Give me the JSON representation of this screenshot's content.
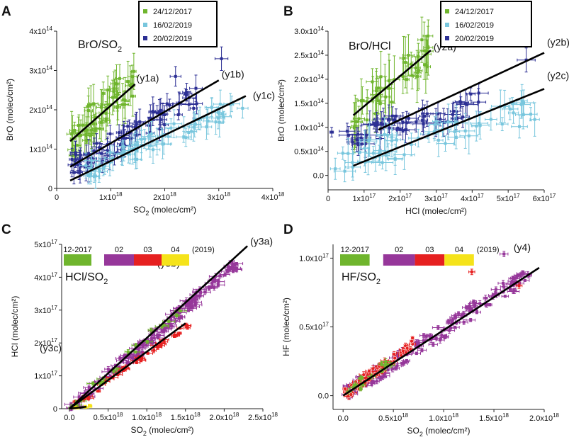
{
  "chart_data": [
    {
      "id": "A",
      "type": "scatter",
      "panel_label": "A",
      "title": "BrO/SO2",
      "title_main": "BrO/SO",
      "title_sub": "2",
      "xlabel_main": "SO",
      "xlabel_sub": "2",
      "xlabel_tail": " (molec/cm²)",
      "ylabel": "BrO  (molec/cm²)",
      "xlim": [
        0,
        4e+18
      ],
      "ylim": [
        0,
        400000000000000.0
      ],
      "x_ticks": [
        {
          "v": 0,
          "m": "0",
          "e": ""
        },
        {
          "v": 1e+18,
          "m": "1x10",
          "e": "18"
        },
        {
          "v": 2e+18,
          "m": "2x10",
          "e": "18"
        },
        {
          "v": 3e+18,
          "m": "3x10",
          "e": "18"
        },
        {
          "v": 4e+18,
          "m": "4x10",
          "e": "18"
        }
      ],
      "y_ticks": [
        {
          "v": 0,
          "m": "0",
          "e": ""
        },
        {
          "v": 100000000000000.0,
          "m": "1x10",
          "e": "14"
        },
        {
          "v": 200000000000000.0,
          "m": "2x10",
          "e": "14"
        },
        {
          "v": 300000000000000.0,
          "m": "3x10",
          "e": "14"
        },
        {
          "v": 400000000000000.0,
          "m": "4x10",
          "e": "14"
        }
      ],
      "legend": [
        "24/12/2017",
        "16/02/2019",
        "20/02/2019"
      ],
      "series": [
        {
          "name": "24/12/2017",
          "color": "#6fb52d",
          "seed": 11,
          "n": 60,
          "x_range": [
            2.5e+17,
            1.45e+18
          ],
          "slope": 0.000135,
          "intercept": 85000000000000.0,
          "scatter": 45000000000000.0,
          "xerr": 6e+16,
          "yerr": 40000000000000.0,
          "marker": "square"
        },
        {
          "name": "20/02/2019",
          "color": "#2c2f94",
          "seed": 23,
          "n": 75,
          "x_range": [
            2.5e+17,
            2.6e+18
          ],
          "slope": 7.5e-05,
          "intercept": 35000000000000.0,
          "scatter": 30000000000000.0,
          "xerr": 9e+16,
          "yerr": 25000000000000.0,
          "marker": "square"
        },
        {
          "name": "16/02/2019",
          "color": "#78c6dd",
          "seed": 37,
          "n": 70,
          "x_range": [
            5e+17,
            3.5e+18
          ],
          "slope": 6e-05,
          "intercept": 10000000000000.0,
          "scatter": 25000000000000.0,
          "xerr": 1e+17,
          "yerr": 25000000000000.0,
          "marker": "square"
        }
      ],
      "extra_points": [
        {
          "x": 3.05e+18,
          "y": 330000000000000.0,
          "color": "#2c2f94",
          "xerr": 1.2e+17,
          "yerr": 30000000000000.0
        },
        {
          "x": 2.2e+18,
          "y": 285000000000000.0,
          "color": "#2c2f94",
          "xerr": 1e+17,
          "yerr": 25000000000000.0
        }
      ],
      "fits": [
        {
          "label": "(y1a)",
          "x0": 2.5e+17,
          "y0": 120000000000000.0,
          "x1": 1.45e+18,
          "y1": 265000000000000.0
        },
        {
          "label": "(y1b)",
          "x0": 2.5e+17,
          "y0": 55000000000000.0,
          "x1": 3e+18,
          "y1": 275000000000000.0
        },
        {
          "label": "(y1c)",
          "x0": 2.5e+17,
          "y0": 20000000000000.0,
          "x1": 3.5e+18,
          "y1": 235000000000000.0
        }
      ]
    },
    {
      "id": "B",
      "type": "scatter",
      "panel_label": "B",
      "title": "BrO/HCl",
      "xlabel": "HCl (molec/cm²)",
      "ylabel": "BrO  (molec/cm²)",
      "xlim": [
        0,
        6e+17
      ],
      "ylim": [
        -30000000000000.0,
        300000000000000.0
      ],
      "x_ticks": [
        {
          "v": 0,
          "m": "0",
          "e": ""
        },
        {
          "v": 1e+17,
          "m": "1x10",
          "e": "17"
        },
        {
          "v": 2e+17,
          "m": "2x10",
          "e": "17"
        },
        {
          "v": 3e+17,
          "m": "3x10",
          "e": "17"
        },
        {
          "v": 4e+17,
          "m": "4x10",
          "e": "17"
        },
        {
          "v": 5e+17,
          "m": "5x10",
          "e": "17"
        },
        {
          "v": 6e+17,
          "m": "6x10",
          "e": "17"
        }
      ],
      "y_ticks": [
        {
          "v": 0,
          "m": "0.0",
          "e": ""
        },
        {
          "v": 50000000000000.0,
          "m": "0.5x10",
          "e": "14"
        },
        {
          "v": 100000000000000.0,
          "m": "1.0x10",
          "e": "14"
        },
        {
          "v": 150000000000000.0,
          "m": "1.5x10",
          "e": "14"
        },
        {
          "v": 200000000000000.0,
          "m": "2.0x10",
          "e": "14"
        },
        {
          "v": 250000000000000.0,
          "m": "2.5x10",
          "e": "14"
        },
        {
          "v": 300000000000000.0,
          "m": "3.0x10",
          "e": "14"
        }
      ],
      "legend": [
        "24/12/2017",
        "16/02/2019",
        "20/02/2019"
      ],
      "series": [
        {
          "name": "24/12/2017",
          "color": "#6fb52d",
          "seed": 41,
          "n": 45,
          "x_range": [
            7e+16,
            2.8e+17
          ],
          "slope": 0.00065,
          "intercept": 75000000000000.0,
          "scatter": 40000000000000.0,
          "xerr": 1.2e+16,
          "yerr": 40000000000000.0,
          "marker": "square"
        },
        {
          "name": "20/02/2019",
          "color": "#2c2f94",
          "seed": 53,
          "n": 55,
          "x_range": [
            5e+16,
            4.2e+17
          ],
          "slope": 0.00019,
          "intercept": 70000000000000.0,
          "scatter": 25000000000000.0,
          "xerr": 2e+16,
          "yerr": 20000000000000.0,
          "marker": "square"
        },
        {
          "name": "16/02/2019",
          "color": "#78c6dd",
          "seed": 67,
          "n": 60,
          "x_range": [
            2e+16,
            5.8e+17
          ],
          "slope": 0.0002,
          "intercept": 25000000000000.0,
          "scatter": 30000000000000.0,
          "xerr": 2e+16,
          "yerr": 25000000000000.0,
          "marker": "square"
        }
      ],
      "extra_points": [
        {
          "x": 5.5e+17,
          "y": 240000000000000.0,
          "color": "#2c2f94",
          "xerr": 2.5e+16,
          "yerr": 25000000000000.0
        },
        {
          "x": 1e+16,
          "y": 90000000000000.0,
          "color": "#2c2f94",
          "xerr": 5000000000000000.0,
          "yerr": 10000000000000.0
        }
      ],
      "fits": [
        {
          "label": "(y2a)",
          "x0": 7e+16,
          "y0": 125000000000000.0,
          "x1": 2.85e+17,
          "y1": 260000000000000.0
        },
        {
          "label": "(y2b)",
          "x0": 1.4e+17,
          "y0": 95000000000000.0,
          "x1": 6e+17,
          "y1": 255000000000000.0
        },
        {
          "label": "(y2c)",
          "x0": 7e+16,
          "y0": 20000000000000.0,
          "x1": 6e+17,
          "y1": 180000000000000.0
        }
      ]
    },
    {
      "id": "C",
      "type": "scatter",
      "panel_label": "C",
      "title": "HCl/SO2",
      "title_main": "HCl/SO",
      "title_sub": "2",
      "xlabel_main": "SO",
      "xlabel_sub": "2",
      "xlabel_tail": " (molec/cm²)",
      "ylabel": "HCl  (molec/cm²)",
      "xlim": [
        -1e+17,
        2.5e+18
      ],
      "ylim": [
        0,
        5e+17
      ],
      "x_ticks": [
        {
          "v": 0,
          "m": "0.0",
          "e": ""
        },
        {
          "v": 5e+17,
          "m": "0.5x10",
          "e": "18"
        },
        {
          "v": 1e+18,
          "m": "1.0x10",
          "e": "18"
        },
        {
          "v": 1.5e+18,
          "m": "1.5x10",
          "e": "18"
        },
        {
          "v": 2e+18,
          "m": "2.0x10",
          "e": "18"
        },
        {
          "v": 2.5e+18,
          "m": "2.5x10",
          "e": "18"
        }
      ],
      "y_ticks": [
        {
          "v": 0,
          "m": "0",
          "e": ""
        },
        {
          "v": 1e+17,
          "m": "1x10",
          "e": "17"
        },
        {
          "v": 2e+17,
          "m": "2x10",
          "e": "17"
        },
        {
          "v": 3e+17,
          "m": "3x10",
          "e": "17"
        },
        {
          "v": 4e+17,
          "m": "4x10",
          "e": "17"
        },
        {
          "v": 5e+17,
          "m": "5x10",
          "e": "17"
        }
      ],
      "month_bar": {
        "items": [
          {
            "label": "12-2017",
            "color": "#6fb52d"
          },
          {
            "label": "02",
            "color": "#96379a"
          },
          {
            "label": "03",
            "color": "#e62020"
          },
          {
            "label": "04",
            "color": "#f5e31a"
          }
        ],
        "year": "(2019)"
      },
      "series": [
        {
          "name": "02-2019",
          "color": "#96379a",
          "seed": 71,
          "n": 150,
          "x_range": [
            2e+16,
            2.2e+18
          ],
          "slope": 0.205,
          "intercept": 0,
          "scatter": 2e+16,
          "xerr": 6e+16,
          "yerr": 6000000000000000.0,
          "marker": "square"
        },
        {
          "name": "03-2019",
          "color": "#e62020",
          "seed": 83,
          "n": 45,
          "x_range": [
            5e+16,
            1.6e+18
          ],
          "slope": 0.165,
          "intercept": 0,
          "scatter": 1e+16,
          "xerr": 5e+16,
          "yerr": 5000000000000000.0,
          "marker": "square"
        },
        {
          "name": "12-2017",
          "color": "#6fb52d",
          "seed": 97,
          "n": 20,
          "x_range": [
            3e+16,
            1.5e+18
          ],
          "slope": 0.215,
          "intercept": 0,
          "scatter": 1.5e+16,
          "xerr": 6e+16,
          "yerr": 5000000000000000.0,
          "marker": "square"
        },
        {
          "name": "04-2019",
          "color": "#f5e31a",
          "seed": 101,
          "n": 12,
          "x_range": [
            2e+16,
            3e+17
          ],
          "slope": 0.03,
          "intercept": 0,
          "scatter": 3000000000000000.0,
          "xerr": 2e+16,
          "yerr": 2000000000000000.0,
          "marker": "square"
        }
      ],
      "extra_points": [],
      "fits": [
        {
          "label": "(y3a)",
          "x0": 0,
          "y0": 0,
          "x1": 2.3e+18,
          "y1": 4.95e+17
        },
        {
          "label": "(y3b)",
          "x0": 0,
          "y0": 0,
          "x1": 1.5e+18,
          "y1": 2.6e+17
        },
        {
          "label": "(y3c)",
          "x0": 0,
          "y0": 0,
          "x1": 2.2e+17,
          "y1": 6000000000000000.0
        }
      ]
    },
    {
      "id": "D",
      "type": "scatter",
      "panel_label": "D",
      "title": "HF/SO2",
      "title_main": "HF/SO",
      "title_sub": "2",
      "xlabel_main": "SO",
      "xlabel_sub": "2",
      "xlabel_tail": " (molec/cm²)",
      "ylabel": "HF  (molec/cm²)",
      "xlim": [
        -1e+17,
        2e+18
      ],
      "ylim": [
        -1e+16,
        1.1e+17
      ],
      "x_ticks": [
        {
          "v": 0,
          "m": "0.0",
          "e": ""
        },
        {
          "v": 5e+17,
          "m": "0.5x10",
          "e": "18"
        },
        {
          "v": 1e+18,
          "m": "1.0x10",
          "e": "18"
        },
        {
          "v": 1.5e+18,
          "m": "1.5x10",
          "e": "18"
        },
        {
          "v": 2e+18,
          "m": "2.0x10",
          "e": "18"
        }
      ],
      "y_ticks": [
        {
          "v": 0,
          "m": "0.0",
          "e": ""
        },
        {
          "v": 5e+16,
          "m": "0.5x10",
          "e": "17"
        },
        {
          "v": 1e+17,
          "m": "1.0x10",
          "e": "17"
        }
      ],
      "month_bar": {
        "items": [
          {
            "label": "12-2017",
            "color": "#6fb52d"
          },
          {
            "label": "02",
            "color": "#96379a"
          },
          {
            "label": "03",
            "color": "#e62020"
          },
          {
            "label": "04",
            "color": "#f5e31a"
          }
        ],
        "year": "(2019)"
      },
      "series": [
        {
          "name": "02-2019",
          "color": "#96379a",
          "seed": 131,
          "n": 140,
          "x_range": [
            1e+16,
            1.85e+18
          ],
          "slope": 0.048,
          "intercept": 0,
          "scatter": 6000000000000000.0,
          "xerr": 4e+16,
          "yerr": 1500000000000000.0,
          "marker": "square"
        },
        {
          "name": "03-2019",
          "color": "#e62020",
          "seed": 149,
          "n": 70,
          "x_range": [
            1e+16,
            7e+17
          ],
          "slope": 0.055,
          "intercept": 0,
          "scatter": 4000000000000000.0,
          "xerr": 3e+16,
          "yerr": 1500000000000000.0,
          "marker": "circle"
        },
        {
          "name": "12-2017",
          "color": "#6fb52d",
          "seed": 151,
          "n": 15,
          "x_range": [
            5e+16,
            5e+17
          ],
          "slope": 0.05,
          "intercept": 0,
          "scatter": 4000000000000000.0,
          "xerr": 3e+16,
          "yerr": 1500000000000000.0,
          "marker": "square"
        }
      ],
      "extra_points": [
        {
          "x": 1.6e+18,
          "y": 1.03e+17,
          "color": "#96379a",
          "xerr": 4e+16,
          "yerr": 2000000000000000.0
        },
        {
          "x": 1.28e+18,
          "y": 9e+16,
          "color": "#e62020",
          "xerr": 3e+16,
          "yerr": 2000000000000000.0
        },
        {
          "x": 1.75e+18,
          "y": 8e+16,
          "color": "#e62020",
          "xerr": 3e+16,
          "yerr": 2000000000000000.0
        }
      ],
      "fits": [
        {
          "label": "(y4)",
          "x0": 0,
          "y0": 0,
          "x1": 1.95e+18,
          "y1": 9.3e+16
        }
      ]
    }
  ]
}
